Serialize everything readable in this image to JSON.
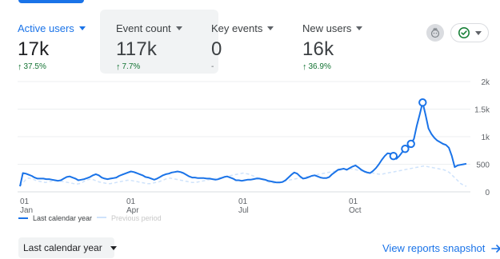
{
  "metrics": [
    {
      "label": "Active users",
      "value": "17k",
      "delta": "37.5%",
      "selected": true
    },
    {
      "label": "Event count",
      "value": "117k",
      "delta": "7.7%",
      "highlighted": true
    },
    {
      "label": "Key events",
      "value": "0",
      "delta": "-"
    },
    {
      "label": "New users",
      "value": "16k",
      "delta": "36.9%"
    }
  ],
  "controls": {
    "insights_icon": "insights-icon",
    "status_icon": "check-circle-icon",
    "period_select": "Last calendar year",
    "snapshot_link": "View reports snapshot"
  },
  "legend": {
    "current": "Last calendar year",
    "previous": "Previous period"
  },
  "colors": {
    "accent": "#1a73e8",
    "positive": "#137333",
    "previous_series": "#cfe3fb",
    "card_highlight": "#f1f3f4"
  },
  "chart_data": {
    "type": "line",
    "y_ticks": [
      "2k",
      "1.5k",
      "1k",
      "500",
      "0"
    ],
    "ylim": [
      0,
      2000
    ],
    "x_ticks": [
      {
        "label": "01",
        "sublabel": "Jan"
      },
      {
        "label": "01",
        "sublabel": "Apr"
      },
      {
        "label": "01",
        "sublabel": "Jul"
      },
      {
        "label": "01",
        "sublabel": "Oct"
      }
    ],
    "series": [
      {
        "name": "Last calendar year",
        "values": [
          100,
          340,
          330,
          310,
          290,
          260,
          240,
          240,
          240,
          230,
          230,
          220,
          210,
          200,
          210,
          240,
          270,
          280,
          260,
          240,
          210,
          220,
          230,
          250,
          270,
          300,
          320,
          300,
          260,
          240,
          230,
          240,
          250,
          260,
          290,
          310,
          330,
          350,
          370,
          360,
          340,
          320,
          300,
          270,
          260,
          240,
          220,
          240,
          270,
          300,
          320,
          330,
          350,
          360,
          370,
          360,
          340,
          310,
          280,
          260,
          260,
          250,
          250,
          250,
          240,
          240,
          230,
          220,
          230,
          250,
          270,
          280,
          260,
          240,
          210,
          210,
          200,
          210,
          220,
          220,
          230,
          240,
          240,
          230,
          220,
          200,
          190,
          180,
          170,
          170,
          180,
          210,
          260,
          310,
          350,
          330,
          280,
          240,
          250,
          270,
          290,
          300,
          280,
          260,
          250,
          250,
          270,
          320,
          360,
          400,
          410,
          420,
          400,
          430,
          460,
          480,
          440,
          400,
          370,
          350,
          340,
          380,
          430,
          500,
          580,
          650,
          700,
          690,
          650,
          600,
          650,
          720,
          780,
          830,
          870,
          960,
          1200,
          1400,
          1620,
          1400,
          1150,
          1050,
          980,
          930,
          900,
          870,
          850,
          800,
          650,
          450,
          480,
          490,
          500,
          510
        ]
      },
      {
        "name": "Previous period",
        "values": [
          100,
          160,
          220,
          250,
          240,
          220,
          200,
          190,
          180,
          170,
          180,
          190,
          200,
          210,
          200,
          190,
          180,
          170,
          160,
          150,
          140,
          150,
          170,
          200,
          220,
          230,
          220,
          200,
          180,
          170,
          160,
          150,
          150,
          160,
          170,
          180,
          190,
          200,
          210,
          210,
          200,
          190,
          180,
          170,
          160,
          150,
          150,
          160,
          170,
          180,
          200,
          220,
          240,
          250,
          240,
          230,
          220,
          210,
          200,
          190,
          180,
          170,
          170,
          180,
          190,
          200,
          210,
          220,
          230,
          240,
          250,
          260,
          270,
          280,
          290,
          300,
          310,
          320,
          330,
          340,
          330,
          320,
          300,
          280,
          260,
          240,
          220,
          200,
          180,
          170,
          160,
          170,
          180,
          190,
          200,
          210,
          220,
          230,
          240,
          250,
          260,
          270,
          280,
          290,
          300,
          310,
          320,
          330,
          340,
          350,
          360,
          370,
          380,
          390,
          400,
          410,
          420,
          420,
          410,
          400,
          390,
          380,
          370,
          360,
          350,
          340,
          330,
          320,
          320,
          330,
          340,
          350,
          360,
          370,
          380,
          390,
          400,
          410,
          420,
          430,
          440,
          450,
          460,
          470,
          460,
          450,
          440,
          430,
          420,
          410,
          400,
          380,
          350,
          300,
          250,
          200,
          150,
          120,
          100
        ]
      }
    ],
    "markers": [
      128,
      132,
      134,
      138
    ],
    "grid": true
  }
}
